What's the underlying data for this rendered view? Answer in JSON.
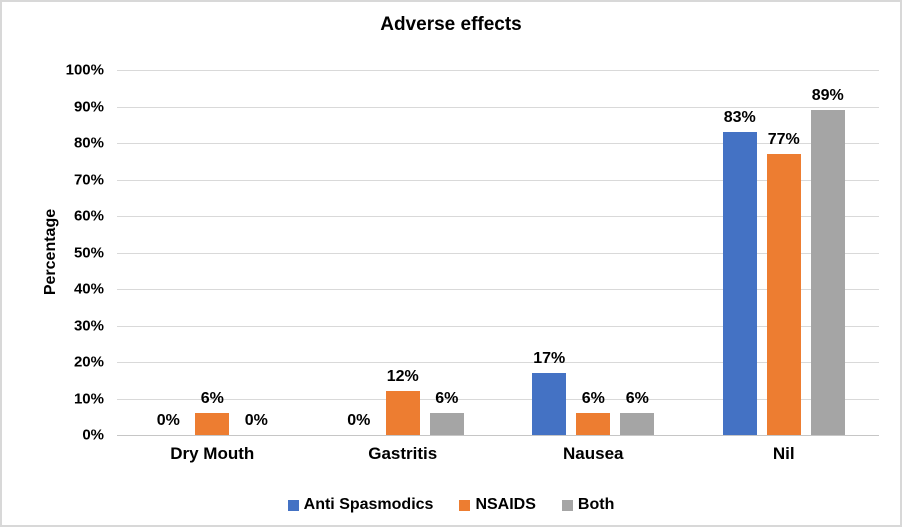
{
  "chart_data": {
    "type": "bar",
    "title": "Adverse effects",
    "xlabel": "",
    "ylabel": "Percentage",
    "categories": [
      "Dry Mouth",
      "Gastritis",
      "Nausea",
      "Nil"
    ],
    "series": [
      {
        "name": "Anti Spasmodics",
        "color": "#4472C4",
        "values": [
          0,
          0,
          17,
          83
        ],
        "labels": [
          "0%",
          "0%",
          "17%",
          "83%"
        ]
      },
      {
        "name": "NSAIDS",
        "color": "#ED7D31",
        "values": [
          6,
          12,
          6,
          77
        ],
        "labels": [
          "6%",
          "12%",
          "6%",
          "77%"
        ]
      },
      {
        "name": "Both",
        "color": "#A5A5A5",
        "values": [
          0,
          6,
          6,
          89
        ],
        "labels": [
          "0%",
          "6%",
          "6%",
          "89%"
        ]
      }
    ],
    "ylim": [
      0,
      100
    ],
    "ytick_step": 10,
    "ytick_labels": [
      "0%",
      "10%",
      "20%",
      "30%",
      "40%",
      "50%",
      "60%",
      "70%",
      "80%",
      "90%",
      "100%"
    ],
    "grid": true,
    "legend_position": "bottom",
    "data_labels_shown": true,
    "colors": {
      "text": "#000000",
      "gridline": "#d9d9d9",
      "axis_line": "#c6c6c6",
      "frame_border": "#d8d8d8",
      "background": "#ffffff"
    }
  }
}
